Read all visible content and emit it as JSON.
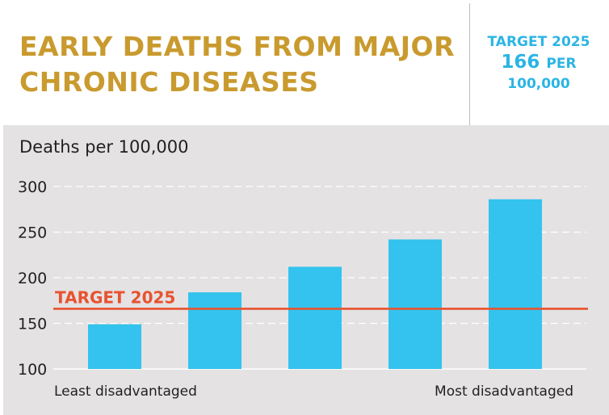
{
  "header": {
    "title_line1": "EARLY DEATHS FROM MAJOR",
    "title_line2": "CHRONIC DISEASES",
    "target_line1": "TARGET 2025",
    "target_value": "166",
    "target_unit": "PER",
    "target_line3": "100,000"
  },
  "colors": {
    "title": "#c99a2e",
    "accent": "#2bb5e4",
    "bar": "#33c3ee",
    "target_line": "#e8522f",
    "panel": "#e4e2e3"
  },
  "chart_data": {
    "type": "bar",
    "title": "",
    "ylabel": "Deaths per 100,000",
    "xlabel": "",
    "categories": [
      "Least disadvantaged",
      "",
      "",
      "",
      "Most disadvantaged"
    ],
    "values": [
      149,
      184,
      212,
      242,
      286
    ],
    "ylim": [
      100,
      300
    ],
    "yticks": [
      100,
      150,
      200,
      250,
      300
    ],
    "grid": true,
    "target": {
      "label": "TARGET 2025",
      "value": 166
    }
  }
}
